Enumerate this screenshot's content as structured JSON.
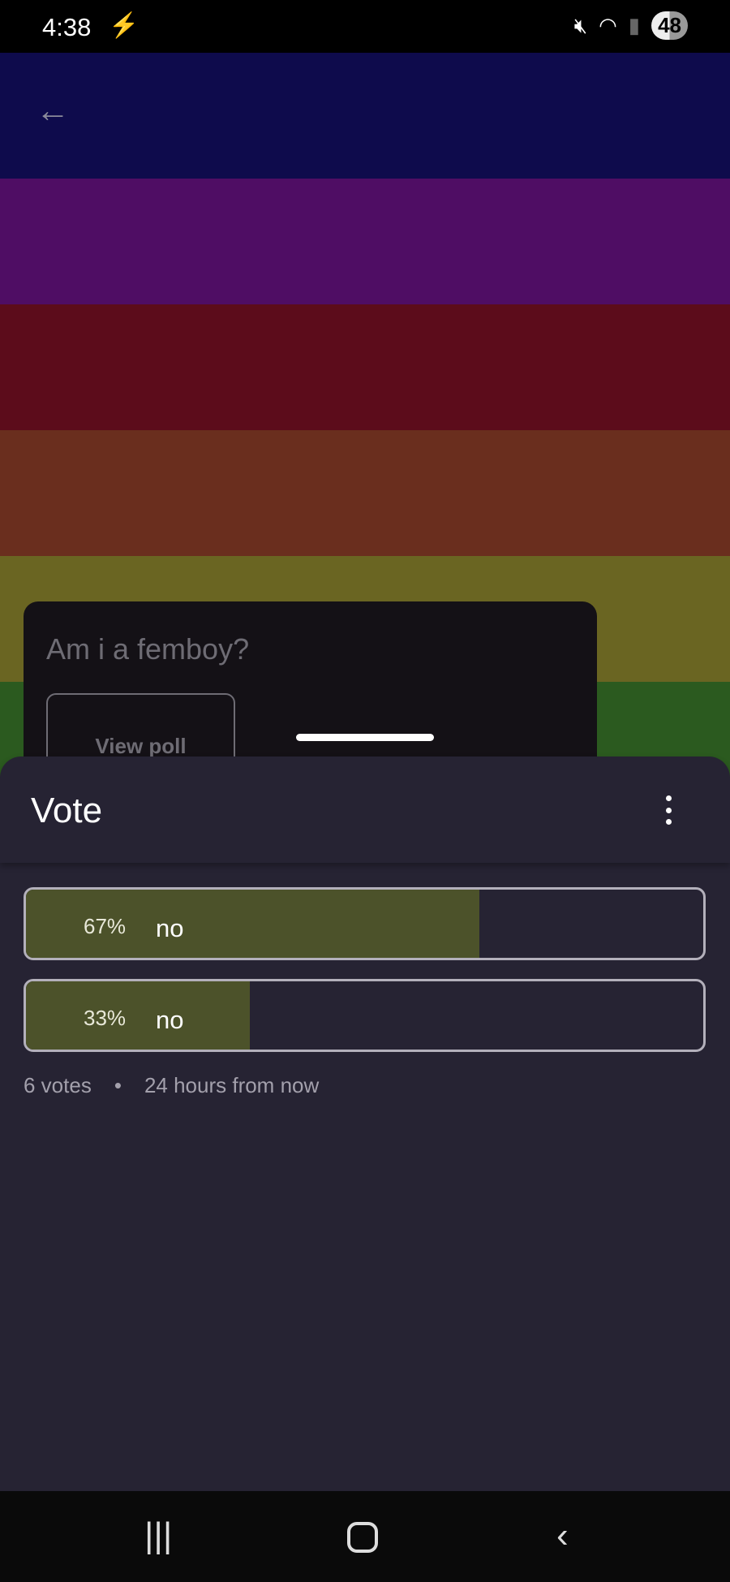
{
  "status_bar": {
    "time": "4:38",
    "battery": "48"
  },
  "background": {
    "stripe_colors": [
      "#0e0b4c",
      "#4f0d64",
      "#5c0c1b",
      "#6a2e1e",
      "#6a6522",
      "#2b5a1f"
    ]
  },
  "post_card": {
    "title": "Am i a femboy?",
    "view_poll_label": "View poll"
  },
  "sheet": {
    "title": "Vote",
    "options": [
      {
        "percent_label": "67%",
        "label": "no",
        "percent": 67
      },
      {
        "percent_label": "33%",
        "label": "no",
        "percent": 33
      }
    ],
    "votes": "6 votes",
    "separator": "•",
    "expires": "24 hours from now",
    "fill_color": "#4c522a"
  }
}
